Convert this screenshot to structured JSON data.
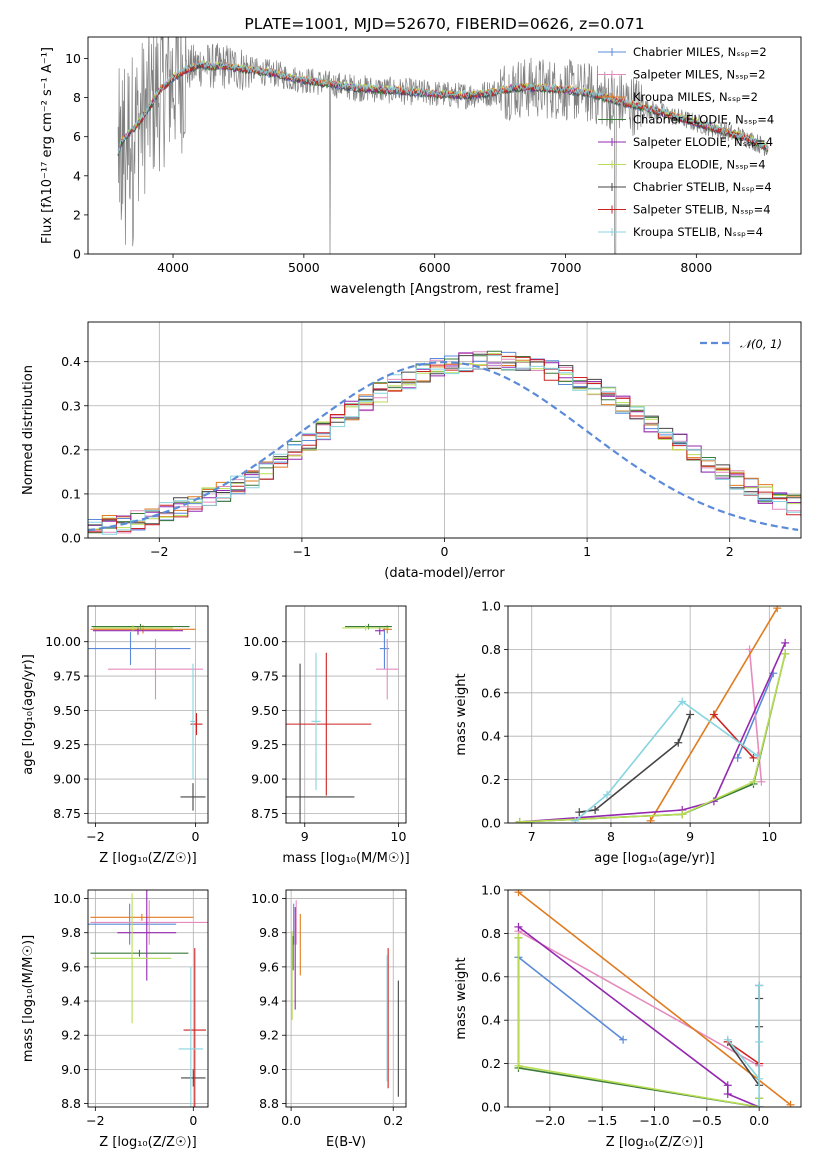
{
  "colors": {
    "Chabrier MILES": "#5b8bd8",
    "Salpeter MILES": "#e58cbf",
    "Kroupa MILES": "#e07b20",
    "Chabrier ELODIE": "#3a7a3a",
    "Salpeter ELODIE": "#9428b0",
    "Kroupa ELODIE": "#b8dd55",
    "Chabrier STELIB": "#454545",
    "Salpeter STELIB": "#cc2222",
    "Kroupa STELIB": "#88d4e0",
    "data": "#808080"
  },
  "chart_data": [
    {
      "id": "spectrum",
      "type": "line",
      "title": "PLATE=1001, MJD=52670, FIBERID=0626, z=0.071",
      "xlabel": "wavelength [Angstrom, rest frame]",
      "ylabel": "Flux [fλ10⁻¹⁷ erg cm⁻² s⁻¹ A⁻¹]",
      "xlim": [
        3350,
        8800
      ],
      "ylim": [
        0,
        11.1
      ],
      "xticks": [
        4000,
        5000,
        6000,
        7000,
        8000
      ],
      "yticks": [
        0,
        2,
        4,
        6,
        8,
        10
      ],
      "xtick_labels": [
        "4000",
        "5000",
        "6000",
        "7000",
        "8000"
      ],
      "ytick_labels": [
        "0",
        "2",
        "4",
        "6",
        "8",
        "10"
      ],
      "legend": [
        "Chabrier MILES, Nₛₛₚ=2",
        "Salpeter MILES, Nₛₛₚ=2",
        "Kroupa MILES, Nₛₛₚ=2",
        "Chabrier ELODIE, Nₛₛₚ=4",
        "Salpeter ELODIE, Nₛₛₚ=4",
        "Kroupa ELODIE, Nₛₛₚ=4",
        "Chabrier STELIB, Nₛₛₚ=4",
        "Salpeter STELIB, Nₛₛₚ=4",
        "Kroupa STELIB, Nₛₛₚ=4"
      ],
      "legend_placement": "upper-right",
      "continuum": {
        "x": [
          3580,
          3620,
          3700,
          3800,
          3900,
          4000,
          4100,
          4200,
          4300,
          4400,
          4500,
          4600,
          4700,
          4800,
          4900,
          5000,
          5200,
          5400,
          5600,
          5800,
          6000,
          6200,
          6400,
          6600,
          6800,
          7000,
          7200,
          7400,
          7600,
          7800,
          8000,
          8200,
          8400,
          8550
        ],
        "y": [
          5.2,
          5.9,
          6.4,
          7.3,
          8.4,
          9.0,
          9.4,
          9.7,
          9.6,
          9.6,
          9.5,
          9.4,
          9.3,
          9.2,
          9.0,
          8.9,
          8.7,
          8.5,
          8.4,
          8.3,
          8.2,
          8.1,
          8.2,
          8.5,
          8.5,
          8.4,
          8.2,
          7.8,
          7.5,
          7.1,
          6.7,
          6.3,
          5.9,
          5.4
        ]
      },
      "grid": false
    },
    {
      "id": "residuals",
      "type": "histogram",
      "xlabel": "(data-model)/error",
      "ylabel": "Normed distribution",
      "xlim": [
        -2.5,
        2.5
      ],
      "ylim": [
        0,
        0.49
      ],
      "xticks": [
        -2,
        -1,
        0,
        1,
        2
      ],
      "yticks": [
        0.0,
        0.1,
        0.2,
        0.3,
        0.4
      ],
      "xtick_labels": [
        "−2",
        "−1",
        "0",
        "1",
        "2"
      ],
      "ytick_labels": [
        "0.0",
        "0.1",
        "0.2",
        "0.3",
        "0.4"
      ],
      "legend": [
        "𝒩(0, 1)"
      ],
      "legend_placement": "upper-right",
      "grid": true,
      "bin_width": 0.1,
      "histogram_center_profile": [
        0.028,
        0.03,
        0.034,
        0.04,
        0.048,
        0.058,
        0.07,
        0.08,
        0.092,
        0.105,
        0.12,
        0.135,
        0.155,
        0.175,
        0.2,
        0.22,
        0.245,
        0.265,
        0.29,
        0.31,
        0.33,
        0.35,
        0.36,
        0.375,
        0.385,
        0.395,
        0.4,
        0.405,
        0.405,
        0.4,
        0.395,
        0.39,
        0.38,
        0.37,
        0.355,
        0.34,
        0.32,
        0.3,
        0.28,
        0.26,
        0.235,
        0.215,
        0.19,
        0.17,
        0.15,
        0.13,
        0.115,
        0.1,
        0.085,
        0.075,
        0.065
      ]
    },
    {
      "id": "age-vs-Z",
      "type": "errorbar",
      "xlabel": "Z [log₁₀(Z/Z☉)]",
      "ylabel": "age  [log₁₀(age/yr)]",
      "xlim": [
        -2.15,
        0.25
      ],
      "ylim": [
        8.68,
        10.26
      ],
      "xticks": [
        -2,
        0
      ],
      "yticks": [
        8.75,
        9.0,
        9.25,
        9.5,
        9.75,
        10.0
      ],
      "xtick_labels": [
        "−2",
        "0"
      ],
      "ytick_labels": [
        "8.75",
        "9.00",
        "9.25",
        "9.50",
        "9.75",
        "10.00"
      ],
      "grid": true,
      "points": [
        {
          "s": "Chabrier MILES",
          "x": -1.3,
          "xe": 1.2,
          "y": 9.95,
          "ye": 0.12
        },
        {
          "s": "Salpeter MILES",
          "x": -0.8,
          "xe": 0.95,
          "y": 9.8,
          "ye": 0.22
        },
        {
          "s": "Kroupa MILES",
          "x": -1.05,
          "xe": 1.05,
          "y": 10.09,
          "ye": 0.03
        },
        {
          "s": "Chabrier ELODIE",
          "x": -1.1,
          "xe": 0.98,
          "y": 10.11,
          "ye": 0.02
        },
        {
          "s": "Salpeter ELODIE",
          "x": -1.15,
          "xe": 0.9,
          "y": 10.08,
          "ye": 0.03
        },
        {
          "s": "Kroupa ELODIE",
          "x": -1.25,
          "xe": 0.8,
          "y": 10.1,
          "ye": 0.02
        },
        {
          "s": "Chabrier STELIB",
          "x": -0.05,
          "xe": 0.25,
          "y": 8.87,
          "ye": 0.1
        },
        {
          "s": "Salpeter STELIB",
          "x": 0.02,
          "xe": 0.12,
          "y": 9.4,
          "ye": 0.08
        },
        {
          "s": "Kroupa STELIB",
          "x": -0.05,
          "xe": 0.06,
          "y": 9.42,
          "ye": 0.42
        }
      ]
    },
    {
      "id": "age-vs-mass",
      "type": "errorbar",
      "xlabel": "mass [log₁₀(M/M☉)]",
      "ylabel": "",
      "xlim": [
        8.8,
        10.08
      ],
      "ylim": [
        8.68,
        10.26
      ],
      "xticks": [
        9,
        10
      ],
      "yticks": [
        8.75,
        9.0,
        9.25,
        9.5,
        9.75,
        10.0
      ],
      "xtick_labels": [
        "9",
        "10"
      ],
      "ytick_labels": [
        "8.75",
        "9.00",
        "9.25",
        "9.50",
        "9.75",
        "10.00"
      ],
      "grid": true,
      "points": [
        {
          "s": "Chabrier MILES",
          "x": 9.85,
          "xe": 0.05,
          "y": 9.95,
          "ye": 0.15
        },
        {
          "s": "Salpeter MILES",
          "x": 9.88,
          "xe": 0.12,
          "y": 9.8,
          "ye": 0.22
        },
        {
          "s": "Kroupa MILES",
          "x": 9.88,
          "xe": 0.05,
          "y": 10.09,
          "ye": 0.03
        },
        {
          "s": "Chabrier ELODIE",
          "x": 9.68,
          "xe": 0.25,
          "y": 10.11,
          "ye": 0.02
        },
        {
          "s": "Salpeter ELODIE",
          "x": 9.8,
          "xe": 0.05,
          "y": 10.08,
          "ye": 0.03
        },
        {
          "s": "Kroupa ELODIE",
          "x": 9.65,
          "xe": 0.25,
          "y": 10.1,
          "ye": 0.02
        },
        {
          "s": "Chabrier STELIB",
          "x": 8.95,
          "xe": 0.58,
          "y": 8.87,
          "ye": 0.97
        },
        {
          "s": "Salpeter STELIB",
          "x": 9.23,
          "xe": 0.48,
          "y": 9.4,
          "ye": 0.52
        },
        {
          "s": "Kroupa STELIB",
          "x": 9.12,
          "xe": 0.05,
          "y": 9.42,
          "ye": 0.5
        }
      ]
    },
    {
      "id": "weight-vs-age",
      "type": "line",
      "xlabel": "age  [log₁₀(age/yr)]",
      "ylabel": "mass weight",
      "xlim": [
        6.7,
        10.4
      ],
      "ylim": [
        0,
        1.0
      ],
      "xticks": [
        7,
        8,
        9,
        10
      ],
      "yticks": [
        0.0,
        0.2,
        0.4,
        0.6,
        0.8,
        1.0
      ],
      "xtick_labels": [
        "7",
        "8",
        "9",
        "10"
      ],
      "ytick_labels": [
        "0.0",
        "0.2",
        "0.4",
        "0.6",
        "0.8",
        "1.0"
      ],
      "grid": true,
      "series": [
        {
          "s": "Chabrier MILES",
          "x": [
            9.6,
            10.05
          ],
          "y": [
            0.3,
            0.69
          ]
        },
        {
          "s": "Salpeter MILES",
          "x": [
            9.75,
            9.9
          ],
          "y": [
            0.8,
            0.19
          ]
        },
        {
          "s": "Kroupa MILES",
          "x": [
            8.5,
            10.1
          ],
          "y": [
            0.01,
            0.99
          ]
        },
        {
          "s": "Chabrier ELODIE",
          "x": [
            6.85,
            8.9,
            9.8,
            10.2
          ],
          "y": [
            0.005,
            0.04,
            0.18,
            0.78
          ]
        },
        {
          "s": "Salpeter ELODIE",
          "x": [
            6.85,
            8.9,
            9.3,
            10.2
          ],
          "y": [
            0.005,
            0.06,
            0.1,
            0.83
          ]
        },
        {
          "s": "Kroupa ELODIE",
          "x": [
            6.85,
            8.9,
            9.8,
            10.2
          ],
          "y": [
            0.005,
            0.04,
            0.19,
            0.78
          ]
        },
        {
          "s": "Chabrier STELIB",
          "x": [
            7.6,
            7.8,
            8.85,
            9.0
          ],
          "y": [
            0.05,
            0.06,
            0.37,
            0.5
          ]
        },
        {
          "s": "Salpeter STELIB",
          "x": [
            9.3,
            9.8
          ],
          "y": [
            0.5,
            0.3
          ]
        },
        {
          "s": "Kroupa STELIB",
          "x": [
            7.55,
            7.95,
            8.9,
            9.85
          ],
          "y": [
            0.01,
            0.13,
            0.56,
            0.31
          ]
        }
      ]
    },
    {
      "id": "mass-vs-Z",
      "type": "errorbar",
      "xlabel": "Z [log₁₀(Z/Z☉)]",
      "ylabel": "mass [log₁₀(M/M☉)]",
      "xlim": [
        -2.15,
        0.3
      ],
      "ylim": [
        8.78,
        10.05
      ],
      "xticks": [
        -2,
        0
      ],
      "yticks": [
        8.8,
        9.0,
        9.2,
        9.4,
        9.6,
        9.8,
        10.0
      ],
      "xtick_labels": [
        "−2",
        "0"
      ],
      "ytick_labels": [
        "8.8",
        "9.0",
        "9.2",
        "9.4",
        "9.6",
        "9.8",
        "10.0"
      ],
      "grid": true,
      "points": [
        {
          "s": "Chabrier MILES",
          "x": -1.3,
          "xe": 0.95,
          "y": 9.85,
          "ye": 0.12
        },
        {
          "s": "Salpeter MILES",
          "x": -0.9,
          "xe": 1.2,
          "y": 9.86,
          "ye": 0.13
        },
        {
          "s": "Kroupa MILES",
          "x": -1.05,
          "xe": 1.05,
          "y": 9.89,
          "ye": 0.02
        },
        {
          "s": "Chabrier ELODIE",
          "x": -1.1,
          "xe": 1.0,
          "y": 9.68,
          "ye": 0.02
        },
        {
          "s": "Salpeter ELODIE",
          "x": -0.95,
          "xe": 0.6,
          "y": 9.8,
          "ye": 0.28
        },
        {
          "s": "Kroupa ELODIE",
          "x": -1.25,
          "xe": 0.8,
          "y": 9.65,
          "ye": 0.38
        },
        {
          "s": "Chabrier STELIB",
          "x": 0.0,
          "xe": 0.25,
          "y": 8.95,
          "ye": 0.05
        },
        {
          "s": "Salpeter STELIB",
          "x": 0.03,
          "xe": 0.23,
          "y": 9.23,
          "ye": 0.48
        },
        {
          "s": "Kroupa STELIB",
          "x": -0.05,
          "xe": 0.25,
          "y": 9.12,
          "ye": 0.48
        }
      ]
    },
    {
      "id": "mass-vs-ebv",
      "type": "errorbar",
      "xlabel": "E(B-V)",
      "ylabel": "",
      "xlim": [
        -0.01,
        0.225
      ],
      "ylim": [
        8.78,
        10.05
      ],
      "xticks": [
        0.0,
        0.2
      ],
      "yticks": [
        8.8,
        9.0,
        9.2,
        9.4,
        9.6,
        9.8,
        10.0
      ],
      "xtick_labels": [
        "0.0",
        "0.2"
      ],
      "ytick_labels": [
        "8.8",
        "9.0",
        "9.2",
        "9.4",
        "9.6",
        "9.8",
        "10.0"
      ],
      "grid": true,
      "points": [
        {
          "s": "Chabrier MILES",
          "x": 0.005,
          "xe": 0.0,
          "y": 9.85,
          "ye": 0.12
        },
        {
          "s": "Salpeter MILES",
          "x": 0.01,
          "xe": 0.0,
          "y": 9.86,
          "ye": 0.13
        },
        {
          "s": "Kroupa MILES",
          "x": 0.018,
          "xe": 0.0,
          "y": 9.73,
          "ye": 0.18
        },
        {
          "s": "Chabrier ELODIE",
          "x": 0.004,
          "xe": 0.0,
          "y": 9.68,
          "ye": 0.1
        },
        {
          "s": "Salpeter ELODIE",
          "x": 0.008,
          "xe": 0.0,
          "y": 9.65,
          "ye": 0.3
        },
        {
          "s": "Kroupa ELODIE",
          "x": 0.002,
          "xe": 0.0,
          "y": 9.55,
          "ye": 0.26
        },
        {
          "s": "Chabrier STELIB",
          "x": 0.21,
          "xe": 0.0,
          "y": 9.18,
          "ye": 0.34
        },
        {
          "s": "Salpeter STELIB",
          "x": 0.19,
          "xe": 0.0,
          "y": 9.3,
          "ye": 0.41
        },
        {
          "s": "Kroupa STELIB",
          "x": 0.188,
          "xe": 0.0,
          "y": 9.3,
          "ye": 0.37
        }
      ]
    },
    {
      "id": "weight-vs-Z",
      "type": "line",
      "xlabel": "Z [log₁₀(Z/Z☉)]",
      "ylabel": "mass weight",
      "xlim": [
        -2.4,
        0.4
      ],
      "ylim": [
        0,
        1.0
      ],
      "xticks": [
        -2.0,
        -1.5,
        -1.0,
        -0.5,
        0.0
      ],
      "yticks": [
        0.0,
        0.2,
        0.4,
        0.6,
        0.8,
        1.0
      ],
      "xtick_labels": [
        "−2.0",
        "−1.5",
        "−1.0",
        "−0.5",
        "0.0"
      ],
      "ytick_labels": [
        "0.0",
        "0.2",
        "0.4",
        "0.6",
        "0.8",
        "1.0"
      ],
      "grid": true,
      "series": [
        {
          "s": "Chabrier MILES",
          "x": [
            -2.3,
            -1.3
          ],
          "y": [
            0.69,
            0.31
          ]
        },
        {
          "s": "Salpeter MILES",
          "x": [
            -2.3,
            0.0
          ],
          "y": [
            0.81,
            0.19
          ]
        },
        {
          "s": "Kroupa MILES",
          "x": [
            -2.3,
            0.3
          ],
          "y": [
            0.99,
            0.01
          ]
        },
        {
          "s": "Chabrier ELODIE",
          "x": [
            -2.3,
            -2.3,
            0.0,
            0.0
          ],
          "y": [
            0.78,
            0.18,
            0.0,
            0.04
          ]
        },
        {
          "s": "Salpeter ELODIE",
          "x": [
            -2.3,
            -0.3,
            -0.3,
            0.0
          ],
          "y": [
            0.83,
            0.1,
            0.06,
            0.0
          ]
        },
        {
          "s": "Kroupa ELODIE",
          "x": [
            -2.3,
            -2.3,
            0.0,
            0.0
          ],
          "y": [
            0.78,
            0.19,
            0.0,
            0.04
          ]
        },
        {
          "s": "Chabrier STELIB",
          "x": [
            -0.3,
            0.0,
            0.0,
            0.0,
            0.0
          ],
          "y": [
            0.3,
            0.1,
            0.37,
            0.5,
            0.56
          ]
        },
        {
          "s": "Salpeter STELIB",
          "x": [
            -0.3,
            0.0
          ],
          "y": [
            0.3,
            0.2
          ]
        },
        {
          "s": "Kroupa STELIB",
          "x": [
            -0.3,
            0.0,
            0.0,
            0.0,
            0.0
          ],
          "y": [
            0.31,
            0.13,
            0.0,
            0.3,
            0.56
          ]
        }
      ]
    }
  ]
}
